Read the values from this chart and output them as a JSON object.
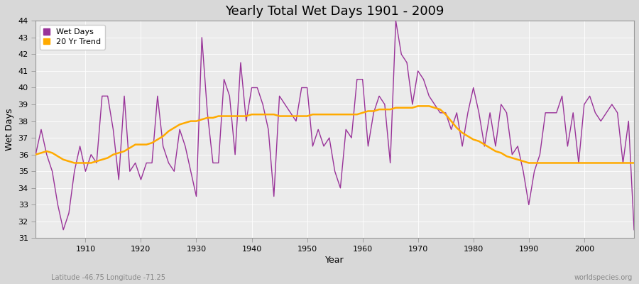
{
  "title": "Yearly Total Wet Days 1901 - 2009",
  "xlabel": "Year",
  "ylabel": "Wet Days",
  "lat_lon_label": "Latitude -46.75 Longitude -71.25",
  "source_label": "worldspecies.org",
  "ylim": [
    31,
    44
  ],
  "yticks": [
    31,
    32,
    33,
    34,
    35,
    36,
    37,
    38,
    39,
    40,
    41,
    42,
    43,
    44
  ],
  "xlim": [
    1901,
    2009
  ],
  "xticks": [
    1910,
    1920,
    1930,
    1940,
    1950,
    1960,
    1970,
    1980,
    1990,
    2000
  ],
  "wet_days_color": "#993399",
  "trend_color": "#ffaa00",
  "fig_bg_color": "#d8d8d8",
  "plot_bg_color": "#ebebeb",
  "years": [
    1901,
    1902,
    1903,
    1904,
    1905,
    1906,
    1907,
    1908,
    1909,
    1910,
    1911,
    1912,
    1913,
    1914,
    1915,
    1916,
    1917,
    1918,
    1919,
    1920,
    1921,
    1922,
    1923,
    1924,
    1925,
    1926,
    1927,
    1928,
    1929,
    1930,
    1931,
    1932,
    1933,
    1934,
    1935,
    1936,
    1937,
    1938,
    1939,
    1940,
    1941,
    1942,
    1943,
    1944,
    1945,
    1946,
    1947,
    1948,
    1949,
    1950,
    1951,
    1952,
    1953,
    1954,
    1955,
    1956,
    1957,
    1958,
    1959,
    1960,
    1961,
    1962,
    1963,
    1964,
    1965,
    1966,
    1967,
    1968,
    1969,
    1970,
    1971,
    1972,
    1973,
    1974,
    1975,
    1976,
    1977,
    1978,
    1979,
    1980,
    1981,
    1982,
    1983,
    1984,
    1985,
    1986,
    1987,
    1988,
    1989,
    1990,
    1991,
    1992,
    1993,
    1994,
    1995,
    1996,
    1997,
    1998,
    1999,
    2000,
    2001,
    2002,
    2003,
    2004,
    2005,
    2006,
    2007,
    2008,
    2009
  ],
  "wet_days": [
    36.0,
    37.5,
    36.0,
    35.0,
    33.0,
    31.5,
    32.5,
    35.0,
    36.5,
    35.0,
    36.0,
    35.5,
    39.5,
    39.5,
    37.5,
    34.5,
    39.5,
    35.0,
    35.5,
    34.5,
    35.5,
    35.5,
    39.5,
    36.5,
    35.5,
    35.0,
    37.5,
    36.5,
    35.0,
    33.5,
    43.0,
    38.5,
    35.5,
    35.5,
    40.5,
    39.5,
    36.0,
    41.5,
    38.0,
    40.0,
    40.0,
    39.0,
    37.5,
    33.5,
    39.5,
    39.0,
    38.5,
    38.0,
    40.0,
    40.0,
    36.5,
    37.5,
    36.5,
    37.0,
    35.0,
    34.0,
    37.5,
    37.0,
    40.5,
    40.5,
    36.5,
    38.5,
    39.5,
    39.0,
    35.5,
    44.0,
    42.0,
    41.5,
    39.0,
    41.0,
    40.5,
    39.5,
    39.0,
    38.5,
    38.5,
    37.5,
    38.5,
    36.5,
    38.5,
    40.0,
    38.5,
    36.5,
    38.5,
    36.5,
    39.0,
    38.5,
    36.0,
    36.5,
    35.0,
    33.0,
    35.0,
    36.0,
    38.5,
    38.5,
    38.5,
    39.5,
    36.5,
    38.5,
    35.5,
    39.0,
    39.5,
    38.5,
    38.0,
    38.5,
    39.0,
    38.5,
    35.5,
    38.0,
    31.5
  ],
  "trend_years": [
    1901,
    1902,
    1903,
    1904,
    1905,
    1906,
    1907,
    1908,
    1909,
    1910,
    1911,
    1912,
    1913,
    1914,
    1915,
    1916,
    1917,
    1918,
    1919,
    1920,
    1921,
    1922,
    1923,
    1924,
    1925,
    1926,
    1927,
    1928,
    1929,
    1930,
    1931,
    1932,
    1933,
    1934,
    1935,
    1936,
    1937,
    1938,
    1939,
    1940,
    1941,
    1942,
    1943,
    1944,
    1945,
    1946,
    1947,
    1948,
    1949,
    1950,
    1951,
    1952,
    1953,
    1954,
    1955,
    1956,
    1957,
    1958,
    1959,
    1960,
    1961,
    1962,
    1963,
    1964,
    1965,
    1966,
    1967,
    1968,
    1969,
    1970,
    1971,
    1972,
    1973,
    1974,
    1975,
    1976,
    1977,
    1978,
    1979,
    1980,
    1981,
    1982,
    1983,
    1984,
    1985,
    1986,
    1987,
    1988,
    1989,
    1990,
    1991,
    1992,
    1993,
    1994,
    1995,
    1996,
    1997,
    1998,
    1999,
    2000,
    2001,
    2002,
    2003,
    2004,
    2005,
    2006,
    2007,
    2008,
    2009
  ],
  "trend_values": [
    36.0,
    36.1,
    36.2,
    36.1,
    35.9,
    35.7,
    35.6,
    35.5,
    35.5,
    35.5,
    35.5,
    35.6,
    35.7,
    35.8,
    36.0,
    36.1,
    36.2,
    36.4,
    36.6,
    36.6,
    36.6,
    36.7,
    36.9,
    37.1,
    37.4,
    37.6,
    37.8,
    37.9,
    38.0,
    38.0,
    38.1,
    38.2,
    38.2,
    38.3,
    38.3,
    38.3,
    38.3,
    38.3,
    38.3,
    38.4,
    38.4,
    38.4,
    38.4,
    38.4,
    38.3,
    38.3,
    38.3,
    38.3,
    38.3,
    38.3,
    38.4,
    38.4,
    38.4,
    38.4,
    38.4,
    38.4,
    38.4,
    38.4,
    38.4,
    38.5,
    38.6,
    38.6,
    38.7,
    38.7,
    38.7,
    38.8,
    38.8,
    38.8,
    38.8,
    38.9,
    38.9,
    38.9,
    38.8,
    38.7,
    38.4,
    38.0,
    37.6,
    37.3,
    37.1,
    36.9,
    36.8,
    36.6,
    36.4,
    36.2,
    36.1,
    35.9,
    35.8,
    35.7,
    35.6,
    35.5,
    35.5,
    35.5,
    35.5,
    35.5,
    35.5,
    35.5,
    35.5,
    35.5,
    35.5,
    35.5,
    35.5,
    35.5,
    35.5,
    35.5,
    35.5,
    35.5,
    35.5,
    35.5,
    35.5
  ]
}
